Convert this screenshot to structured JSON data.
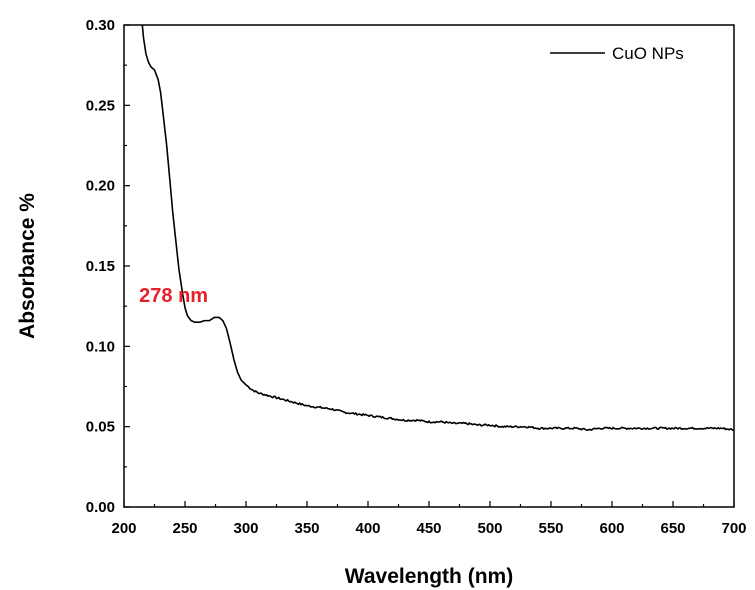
{
  "chart_data": {
    "type": "line",
    "xlabel": "Wavelength (nm)",
    "ylabel": "Absorbance %",
    "xlim": [
      200,
      700
    ],
    "ylim": [
      0.0,
      0.3
    ],
    "x_ticks": [
      "200",
      "250",
      "300",
      "350",
      "400",
      "450",
      "500",
      "550",
      "600",
      "650",
      "700"
    ],
    "y_ticks": [
      "0.00",
      "0.05",
      "0.10",
      "0.15",
      "0.20",
      "0.25",
      "0.30"
    ],
    "grid": false,
    "legend_position": "top-right",
    "series": [
      {
        "name": "CuO NPs",
        "color": "#000000",
        "points": [
          [
            215,
            0.3
          ],
          [
            216,
            0.292
          ],
          [
            218,
            0.282
          ],
          [
            220,
            0.277
          ],
          [
            222,
            0.274
          ],
          [
            225,
            0.272
          ],
          [
            228,
            0.266
          ],
          [
            230,
            0.258
          ],
          [
            232,
            0.245
          ],
          [
            235,
            0.225
          ],
          [
            238,
            0.2
          ],
          [
            240,
            0.183
          ],
          [
            243,
            0.162
          ],
          [
            245,
            0.148
          ],
          [
            248,
            0.133
          ],
          [
            250,
            0.124
          ],
          [
            252,
            0.119
          ],
          [
            255,
            0.116
          ],
          [
            258,
            0.115
          ],
          [
            262,
            0.115
          ],
          [
            266,
            0.116
          ],
          [
            270,
            0.116
          ],
          [
            274,
            0.118
          ],
          [
            278,
            0.118
          ],
          [
            281,
            0.116
          ],
          [
            284,
            0.111
          ],
          [
            287,
            0.102
          ],
          [
            290,
            0.092
          ],
          [
            293,
            0.084
          ],
          [
            296,
            0.079
          ],
          [
            300,
            0.076
          ],
          [
            305,
            0.073
          ],
          [
            310,
            0.071
          ],
          [
            320,
            0.069
          ],
          [
            330,
            0.067
          ],
          [
            340,
            0.065
          ],
          [
            350,
            0.063
          ],
          [
            360,
            0.062
          ],
          [
            370,
            0.061
          ],
          [
            380,
            0.059
          ],
          [
            390,
            0.058
          ],
          [
            400,
            0.057
          ],
          [
            410,
            0.056
          ],
          [
            420,
            0.055
          ],
          [
            430,
            0.054
          ],
          [
            440,
            0.054
          ],
          [
            450,
            0.053
          ],
          [
            460,
            0.053
          ],
          [
            470,
            0.052
          ],
          [
            480,
            0.052
          ],
          [
            490,
            0.051
          ],
          [
            500,
            0.051
          ],
          [
            510,
            0.05
          ],
          [
            520,
            0.05
          ],
          [
            530,
            0.05
          ],
          [
            540,
            0.049
          ],
          [
            550,
            0.049
          ],
          [
            560,
            0.049
          ],
          [
            570,
            0.049
          ],
          [
            580,
            0.048
          ],
          [
            590,
            0.049
          ],
          [
            600,
            0.049
          ],
          [
            610,
            0.049
          ],
          [
            620,
            0.049
          ],
          [
            630,
            0.049
          ],
          [
            640,
            0.049
          ],
          [
            650,
            0.049
          ],
          [
            660,
            0.049
          ],
          [
            670,
            0.049
          ],
          [
            680,
            0.049
          ],
          [
            690,
            0.049
          ],
          [
            700,
            0.048
          ]
        ]
      }
    ],
    "annotations": [
      {
        "text": "278 nm",
        "x": 278,
        "y": 0.132,
        "color": "#e8202a"
      }
    ]
  }
}
